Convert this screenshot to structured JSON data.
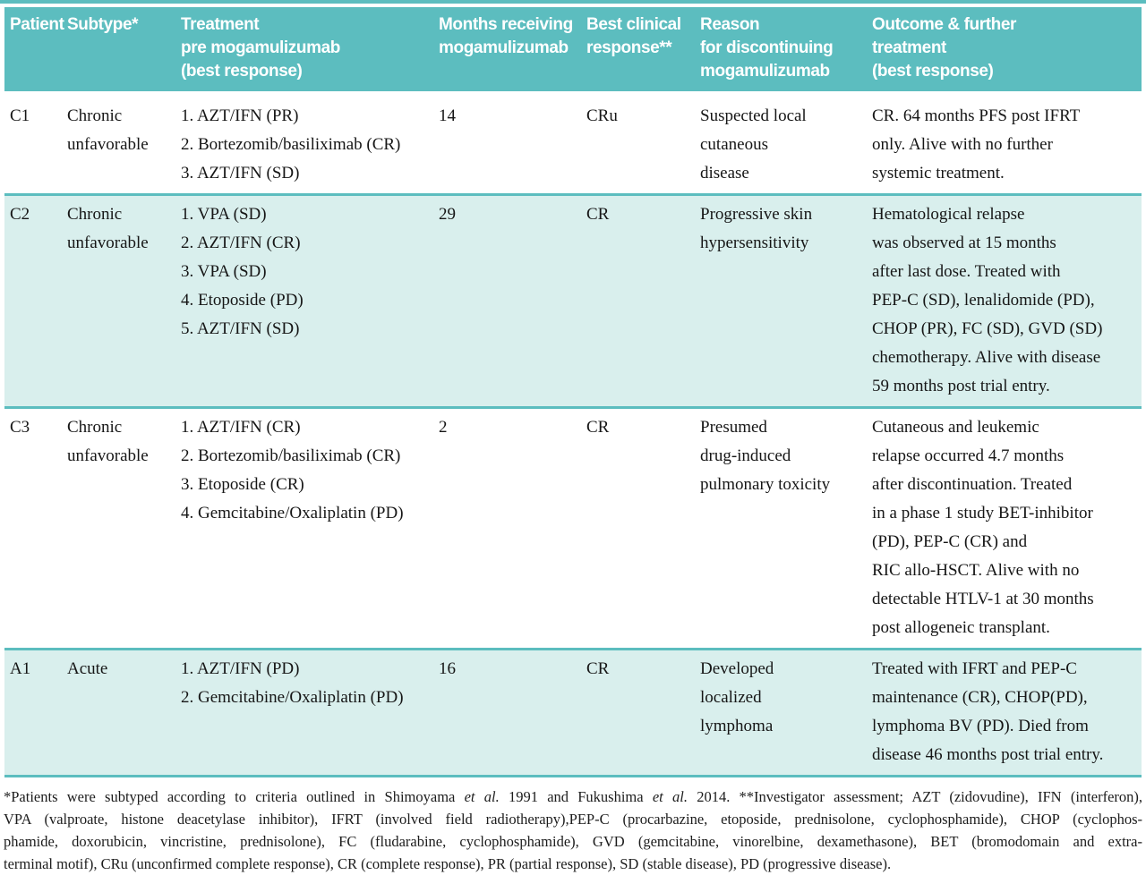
{
  "colors": {
    "header_teal": "#5cbdbf",
    "row_light": "#d9efed"
  },
  "table": {
    "columns": [
      {
        "label": "Patient"
      },
      {
        "label": "Subtype*"
      },
      {
        "label": "Treatment\npre mogamulizumab\n(best response)"
      },
      {
        "label": "Months receiving\nmogamulizumab"
      },
      {
        "label": "Best clinical\nresponse**"
      },
      {
        "label": "Reason\nfor discontinuing\nmogamulizumab"
      },
      {
        "label": "Outcome & further\ntreatment\n(best response)"
      }
    ],
    "rows": [
      {
        "patient": "C1",
        "subtype": "Chronic\nunfavorable",
        "treatment": "1. AZT/IFN (PR)\n2. Bortezomib/basiliximab (CR)\n3. AZT/IFN (SD)",
        "months": "14",
        "response": "CRu",
        "reason": "Suspected local\ncutaneous\ndisease",
        "outcome": "CR. 64 months PFS post IFRT\nonly.  Alive with no further\nsystemic treatment."
      },
      {
        "patient": "C2",
        "subtype": "Chronic\nunfavorable",
        "treatment": "1. VPA  (SD)\n2. AZT/IFN (CR)\n3. VPA (SD)\n4. Etoposide (PD)\n5. AZT/IFN (SD)",
        "months": "29",
        "response": "CR",
        "reason": "Progressive skin\nhypersensitivity",
        "outcome": "Hematological relapse\nwas observed at 15 months\nafter last dose. Treated with\nPEP-C (SD), lenalidomide (PD),\nCHOP (PR), FC (SD), GVD (SD)\nchemotherapy. Alive with disease\n59 months post trial entry."
      },
      {
        "patient": "C3",
        "subtype": "Chronic\nunfavorable",
        "treatment": "1. AZT/IFN (CR)\n2. Bortezomib/basiliximab (CR)\n3. Etoposide (CR)\n4. Gemcitabine/Oxaliplatin (PD)",
        "months": "2",
        "response": "CR",
        "reason": "Presumed\ndrug-induced\npulmonary toxicity",
        "outcome": "Cutaneous and leukemic\nrelapse occurred 4.7 months\nafter discontinuation. Treated\nin a phase 1 study BET-inhibitor\n(PD), PEP-C (CR) and\nRIC allo-HSCT.  Alive with no\ndetectable HTLV-1 at 30 months\npost allogeneic transplant."
      },
      {
        "patient": "A1",
        "subtype": "Acute",
        "treatment": "1. AZT/IFN (PD)\n2. Gemcitabine/Oxaliplatin (PD)",
        "months": "16",
        "response": "CR",
        "reason": "Developed\nlocalized\nlymphoma",
        "outcome": "Treated with IFRT and PEP-C\nmaintenance (CR), CHOP(PD),\nlymphoma BV (PD). Died from\ndisease 46 months post trial entry."
      }
    ]
  },
  "footnote": {
    "lines": [
      "*Patients were subtyped according to criteria outlined in Shimoyama et al. 1991 and Fukushima et al. 2014. **Investigator assessment; AZT (zidovudine), IFN (interferon),",
      "VPA (valproate, histone deacetylase inhibitor), IFRT (involved field radiotherapy),PEP-C (procarbazine, etoposide, prednisolone, cyclophosphamide), CHOP (cyclophos-",
      "phamide, doxorubicin, vincristine, prednisolone), FC (fludarabine, cyclophosphamide), GVD (gemcitabine, vinorelbine, dexamethasone), BET (bromodomain and extra-",
      "terminal motif), CRu (unconfirmed complete response), CR (complete response), PR (partial response), SD (stable disease), PD (progressive disease)."
    ]
  }
}
